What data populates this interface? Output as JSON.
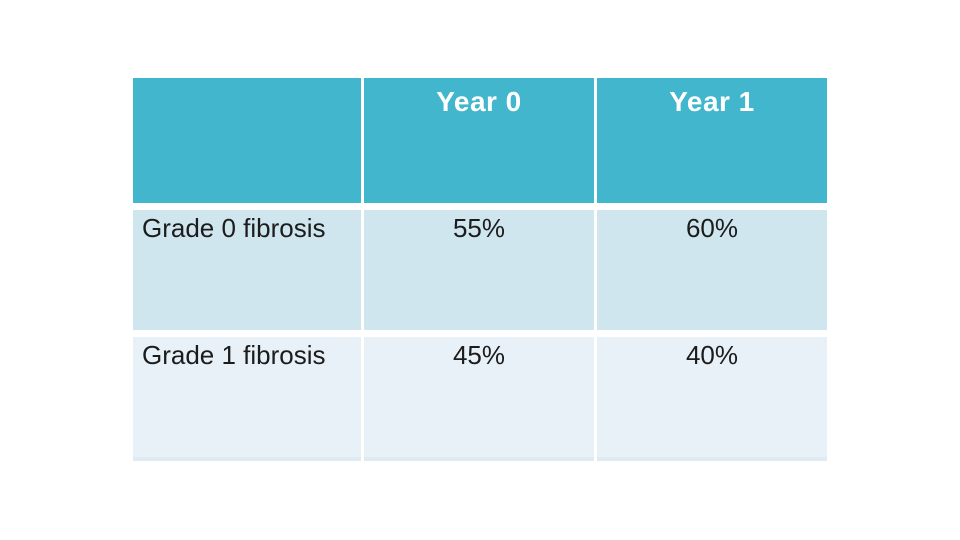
{
  "slide": {
    "background": "#ffffff"
  },
  "chart_data": {
    "type": "table",
    "title": "",
    "columns": [
      "",
      "Year 0",
      "Year 1"
    ],
    "rows": [
      {
        "label": "Grade 0 fibrosis",
        "values": [
          "55%",
          "60%"
        ]
      },
      {
        "label": "Grade 1 fibrosis",
        "values": [
          "45%",
          "40%"
        ]
      }
    ]
  },
  "colors": {
    "header_bg": "#42b6cc",
    "header_text": "#ffffff",
    "row_odd_bg": "#cfe6ee",
    "row_even_bg": "#e7f1f7",
    "body_text": "#1c1c1c"
  }
}
